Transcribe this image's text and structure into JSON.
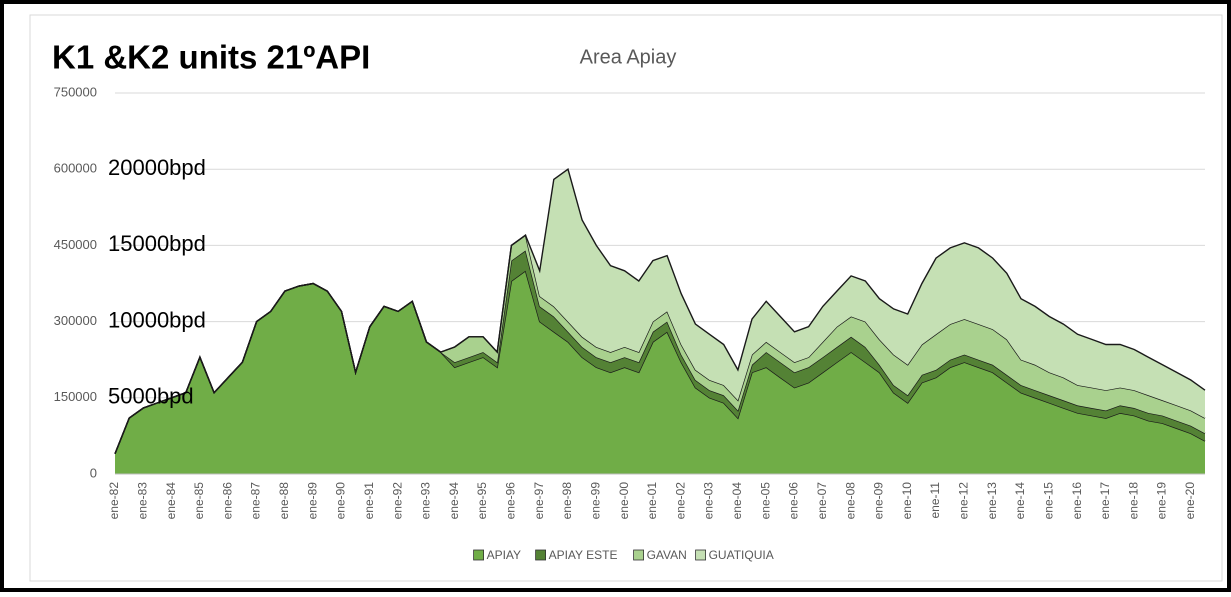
{
  "chart_data": {
    "type": "stacked_area",
    "title": "K1 &K2 units 21ºAPI",
    "subtitle": "Area Apiay",
    "annotations": [
      "20000bpd",
      "15000bpd",
      "10000bpd",
      "5000bpd"
    ],
    "categories": [
      "ene-82",
      null,
      "ene-83",
      null,
      "ene-84",
      null,
      "ene-85",
      null,
      "ene-86",
      null,
      "ene-87",
      null,
      "ene-88",
      null,
      "ene-89",
      null,
      "ene-90",
      null,
      "ene-91",
      null,
      "ene-92",
      null,
      "ene-93",
      null,
      "ene-94",
      null,
      "ene-95",
      null,
      "ene-96",
      null,
      "ene-97",
      null,
      "ene-98",
      null,
      "ene-99",
      null,
      "ene-00",
      null,
      "ene-01",
      null,
      "ene-02",
      null,
      "ene-03",
      null,
      "ene-04",
      null,
      "ene-05",
      null,
      "ene-06",
      null,
      "ene-07",
      null,
      "ene-08",
      null,
      "ene-09",
      null,
      "ene-10",
      null,
      "ene-11",
      null,
      "ene-12",
      null,
      "ene-13",
      null,
      "ene-14",
      null,
      "ene-15",
      null,
      "ene-16",
      null,
      "ene-17",
      null,
      "ene-18",
      null,
      "ene-19",
      null,
      "ene-20",
      null
    ],
    "series": [
      {
        "name": "APIAY",
        "color": "#70ad47",
        "values": [
          40000,
          110000,
          130000,
          140000,
          150000,
          160000,
          230000,
          160000,
          190000,
          220000,
          300000,
          320000,
          360000,
          370000,
          375000,
          360000,
          320000,
          200000,
          290000,
          330000,
          320000,
          340000,
          260000,
          240000,
          210000,
          220000,
          230000,
          210000,
          380000,
          400000,
          300000,
          280000,
          260000,
          230000,
          210000,
          200000,
          210000,
          200000,
          260000,
          280000,
          220000,
          170000,
          150000,
          140000,
          110000,
          200000,
          210000,
          190000,
          170000,
          180000,
          200000,
          220000,
          240000,
          220000,
          200000,
          160000,
          140000,
          180000,
          190000,
          210000,
          220000,
          210000,
          200000,
          180000,
          160000,
          150000,
          140000,
          130000,
          120000,
          115000,
          110000,
          120000,
          115000,
          105000,
          100000,
          90000,
          80000,
          65000
        ]
      },
      {
        "name": "APIAY ESTE",
        "color": "#548235",
        "values": [
          0,
          0,
          0,
          0,
          0,
          0,
          0,
          0,
          0,
          0,
          0,
          0,
          0,
          0,
          0,
          0,
          0,
          0,
          0,
          0,
          0,
          0,
          0,
          0,
          10000,
          10000,
          10000,
          10000,
          40000,
          40000,
          30000,
          30000,
          20000,
          20000,
          20000,
          20000,
          20000,
          20000,
          20000,
          20000,
          15000,
          15000,
          15000,
          15000,
          15000,
          15000,
          30000,
          30000,
          30000,
          30000,
          30000,
          30000,
          30000,
          30000,
          15000,
          15000,
          15000,
          15000,
          15000,
          15000,
          15000,
          15000,
          15000,
          15000,
          15000,
          15000,
          15000,
          15000,
          15000,
          15000,
          15000,
          15000,
          15000,
          15000,
          15000,
          15000,
          15000,
          15000
        ]
      },
      {
        "name": "GAVAN",
        "color": "#a9d18e",
        "values": [
          0,
          0,
          0,
          0,
          0,
          0,
          0,
          0,
          0,
          0,
          0,
          0,
          0,
          0,
          0,
          0,
          0,
          0,
          0,
          0,
          0,
          0,
          0,
          0,
          30000,
          40000,
          30000,
          20000,
          30000,
          30000,
          20000,
          20000,
          20000,
          20000,
          20000,
          20000,
          20000,
          20000,
          20000,
          20000,
          20000,
          20000,
          20000,
          20000,
          20000,
          20000,
          20000,
          20000,
          20000,
          20000,
          30000,
          40000,
          40000,
          50000,
          50000,
          60000,
          60000,
          60000,
          70000,
          70000,
          70000,
          70000,
          70000,
          70000,
          50000,
          50000,
          45000,
          45000,
          40000,
          40000,
          40000,
          35000,
          35000,
          35000,
          30000,
          30000,
          30000,
          30000
        ]
      },
      {
        "name": "GUATIQUIA",
        "color": "#c5e0b4",
        "values": [
          0,
          0,
          0,
          0,
          0,
          0,
          0,
          0,
          0,
          0,
          0,
          0,
          0,
          0,
          0,
          0,
          0,
          0,
          0,
          0,
          0,
          0,
          0,
          0,
          0,
          0,
          0,
          0,
          0,
          0,
          50000,
          250000,
          300000,
          230000,
          200000,
          170000,
          150000,
          140000,
          120000,
          110000,
          100000,
          90000,
          90000,
          80000,
          60000,
          70000,
          80000,
          70000,
          60000,
          60000,
          70000,
          70000,
          80000,
          80000,
          80000,
          90000,
          100000,
          120000,
          150000,
          150000,
          150000,
          150000,
          140000,
          130000,
          120000,
          115000,
          110000,
          105000,
          100000,
          95000,
          90000,
          85000,
          80000,
          75000,
          70000,
          65000,
          60000,
          55000
        ]
      }
    ],
    "ylim": [
      0,
      750000
    ],
    "yticks": [
      0,
      150000,
      300000,
      450000,
      600000,
      750000
    ],
    "grid": true,
    "legend": "bottom"
  }
}
